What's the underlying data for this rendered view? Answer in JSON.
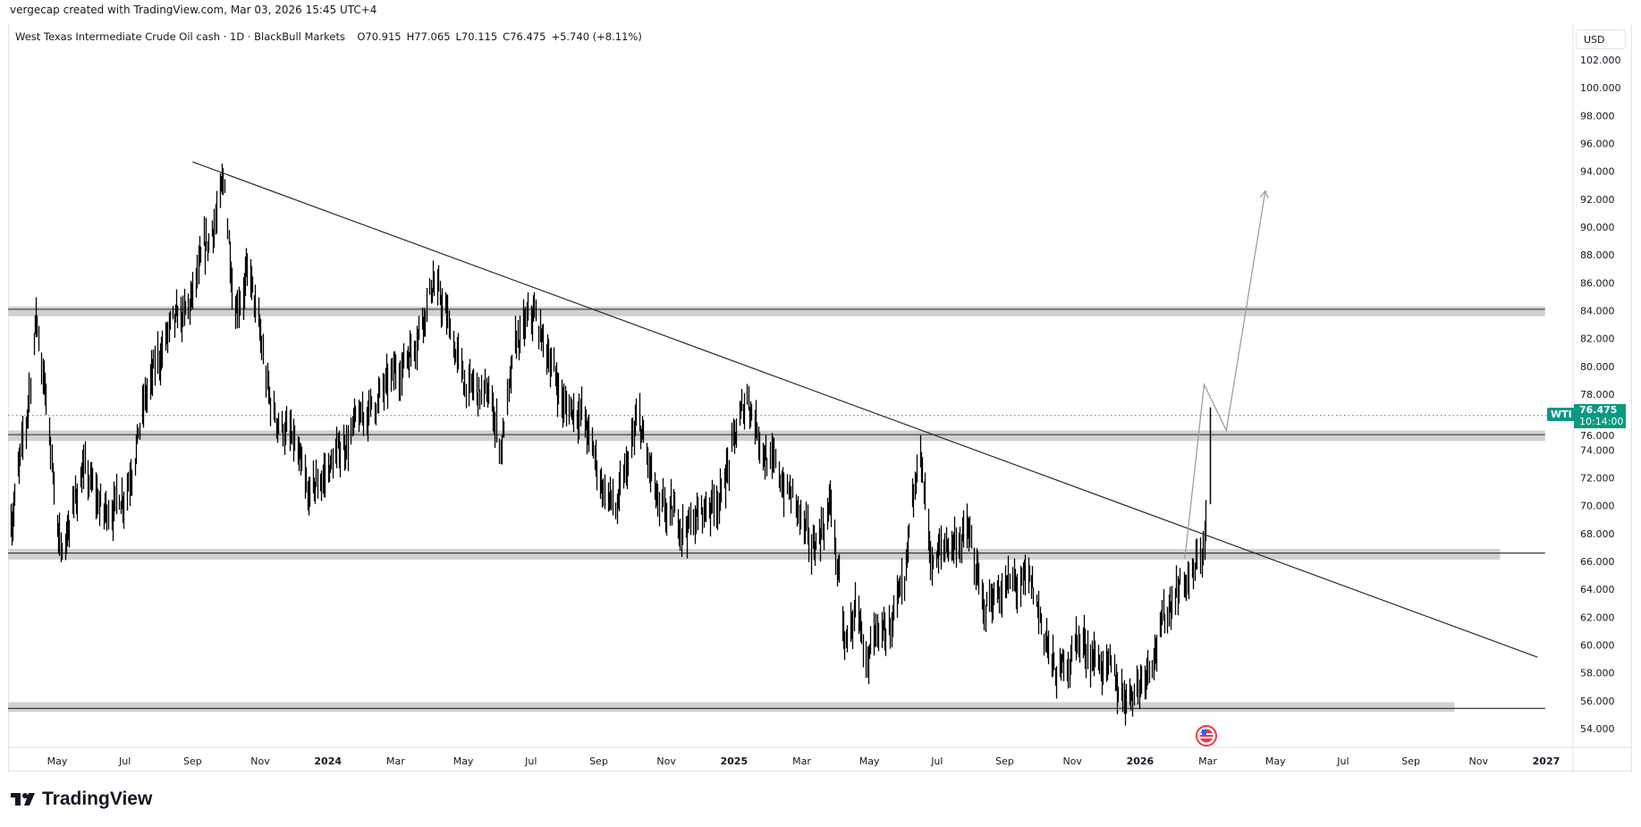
{
  "header": {
    "credit": "vergecap created with TradingView.com, Mar 03, 2026 15:45 UTC+4"
  },
  "legend": {
    "symbol": "West Texas Intermediate Crude Oil cash · 1D · BlackBull Markets",
    "open": "O70.915",
    "high": "H77.065",
    "low": "L70.115",
    "close": "C76.475",
    "change": "+5.740 (+8.11%)"
  },
  "price_axis": {
    "currency": "USD",
    "symbol_tag": "WTI",
    "last_price": "76.475",
    "countdown": "10:14:00"
  },
  "footer": {
    "brand": "TradingView"
  },
  "colors": {
    "bars": "#000000",
    "zone": "#d1d1d1",
    "zone_line": "#3a3a3a",
    "trendline": "#2a2a2a",
    "projection": "#9e9e9e",
    "last_price": "#089981"
  },
  "chart_data": {
    "type": "bar",
    "symbol": "WTI",
    "interval": "1D",
    "ylim": [
      53,
      104
    ],
    "y_ticks": [
      "102.000",
      "100.000",
      "98.000",
      "96.000",
      "94.000",
      "92.000",
      "90.000",
      "88.000",
      "86.000",
      "84.000",
      "82.000",
      "80.000",
      "78.000",
      "76.000",
      "74.000",
      "72.000",
      "70.000",
      "68.000",
      "66.000",
      "64.000",
      "62.000",
      "60.000",
      "58.000",
      "56.000",
      "54.000"
    ],
    "x_ticks": [
      "May",
      "Jul",
      "Sep",
      "Nov",
      "2024",
      "Mar",
      "May",
      "Jul",
      "Sep",
      "Nov",
      "2025",
      "Mar",
      "May",
      "Jul",
      "Sep",
      "Nov",
      "2026",
      "Mar",
      "May",
      "Jul",
      "Sep",
      "Nov",
      "2027"
    ],
    "price_path": [
      [
        "2023-03-20",
        68.7
      ],
      [
        "2023-04-03",
        75.5
      ],
      [
        "2023-04-12",
        83.7
      ],
      [
        "2023-04-21",
        77.7
      ],
      [
        "2023-05-04",
        66.5
      ],
      [
        "2023-05-24",
        72.5
      ],
      [
        "2023-06-12",
        69.5
      ],
      [
        "2023-07-01",
        71
      ],
      [
        "2023-07-20",
        77.7
      ],
      [
        "2023-08-08",
        82.2
      ],
      [
        "2023-08-27",
        83.7
      ],
      [
        "2023-09-10",
        87.5
      ],
      [
        "2023-09-24",
        91.5
      ],
      [
        "2023-09-29",
        93
      ],
      [
        "2023-10-08",
        84.5
      ],
      [
        "2023-10-22",
        86.7
      ],
      [
        "2023-11-10",
        77
      ],
      [
        "2023-11-29",
        74.7
      ],
      [
        "2023-12-13",
        70.5
      ],
      [
        "2024-01-06",
        73.2
      ],
      [
        "2024-01-30",
        76.2
      ],
      [
        "2024-02-23",
        78.5
      ],
      [
        "2024-03-16",
        81.5
      ],
      [
        "2024-04-04",
        86
      ],
      [
        "2024-04-18",
        83
      ],
      [
        "2024-05-02",
        78.5
      ],
      [
        "2024-05-26",
        77.7
      ],
      [
        "2024-06-04",
        74.2
      ],
      [
        "2024-06-18",
        81.5
      ],
      [
        "2024-07-03",
        83.7
      ],
      [
        "2024-07-17",
        80.7
      ],
      [
        "2024-08-01",
        77
      ],
      [
        "2024-08-15",
        77
      ],
      [
        "2024-09-03",
        71.7
      ],
      [
        "2024-09-17",
        69.5
      ],
      [
        "2024-10-06",
        76.2
      ],
      [
        "2024-10-25",
        69.5
      ],
      [
        "2024-11-22",
        68.7
      ],
      [
        "2024-12-20",
        71
      ],
      [
        "2025-01-13",
        78
      ],
      [
        "2025-02-01",
        73.2
      ],
      [
        "2025-02-24",
        70.2
      ],
      [
        "2025-03-09",
        66.5
      ],
      [
        "2025-03-28",
        70.2
      ],
      [
        "2025-04-09",
        59.7
      ],
      [
        "2025-04-20",
        62.7
      ],
      [
        "2025-04-30",
        58.2
      ],
      [
        "2025-05-19",
        62
      ],
      [
        "2025-06-02",
        64.2
      ],
      [
        "2025-06-16",
        74
      ],
      [
        "2025-06-26",
        65.7
      ],
      [
        "2025-07-10",
        67.2
      ],
      [
        "2025-07-29",
        68
      ],
      [
        "2025-08-12",
        62.7
      ],
      [
        "2025-08-31",
        64.2
      ],
      [
        "2025-09-24",
        64.2
      ],
      [
        "2025-10-08",
        60.4
      ],
      [
        "2025-10-17",
        57.4
      ],
      [
        "2025-11-05",
        60.4
      ],
      [
        "2025-11-24",
        58.9
      ],
      [
        "2025-12-17",
        56.4
      ],
      [
        "2026-01-01",
        57.4
      ],
      [
        "2026-01-20",
        61.2
      ],
      [
        "2026-02-03",
        64.2
      ],
      [
        "2026-02-17",
        65
      ],
      [
        "2026-02-25",
        66.8
      ],
      [
        "2026-03-02",
        71.2
      ]
    ],
    "last_bar": {
      "date": "2026-03-03",
      "open": 70.915,
      "high": 77.065,
      "low": 70.115,
      "close": 76.475
    },
    "drawings": {
      "zones": [
        {
          "top": 84.3,
          "bottom": 83.6,
          "line": 84.1,
          "end": "2026-12-31",
          "line_end": "2026-12-31"
        },
        {
          "top": 75.4,
          "bottom": 74.65,
          "line": 75.1,
          "end": "2026-12-31",
          "line_end": "2026-12-31"
        },
        {
          "top": 66.9,
          "bottom": 66.13,
          "line": 66.6,
          "end": "2026-11-20",
          "line_end": "2026-12-31"
        },
        {
          "top": 55.9,
          "bottom": 55.2,
          "line": 55.45,
          "end": "2026-10-10",
          "line_end": "2026-12-31"
        }
      ],
      "trendline": [
        [
          "2023-09-01",
          94.68
        ],
        [
          "2026-12-24",
          59.13
        ]
      ],
      "projection": [
        [
          "2026-02-10",
          66.2
        ],
        [
          "2026-02-26",
          78.7
        ],
        [
          "2026-03-18",
          75.4
        ],
        [
          "2026-04-22",
          92.6
        ]
      ]
    }
  }
}
